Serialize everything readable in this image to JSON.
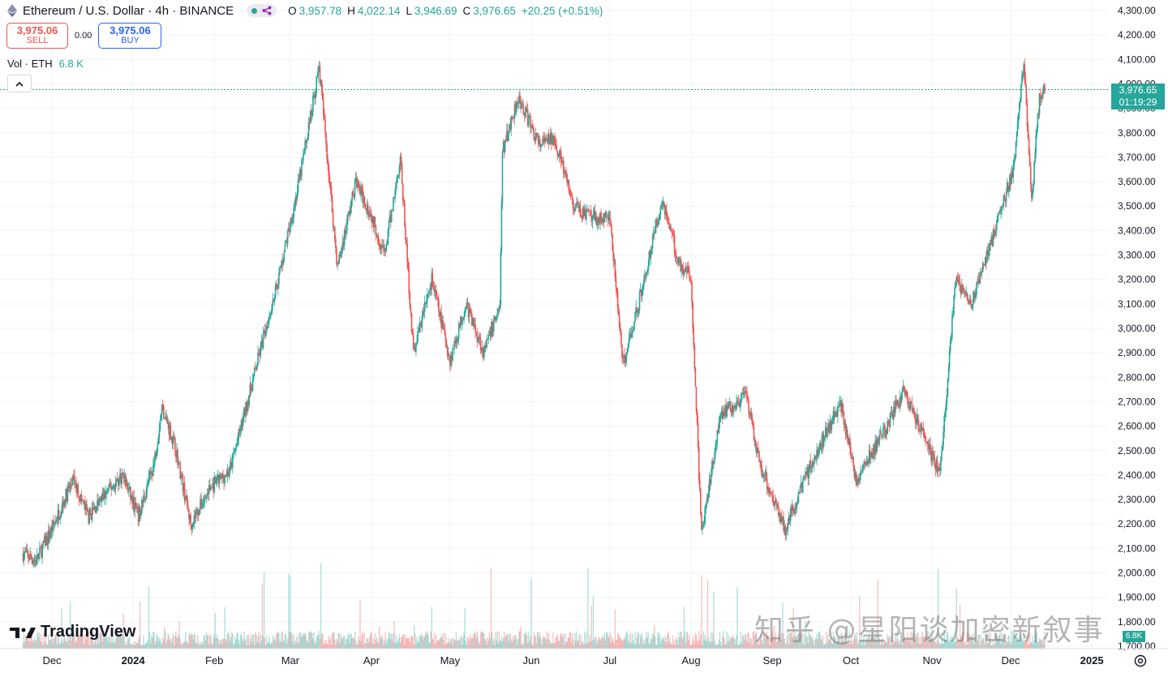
{
  "header": {
    "symbol_title": "Ethereum / U.S. Dollar · 4h · BINANCE",
    "ohlc": {
      "o_label": "O",
      "o_value": "3,957.78",
      "h_label": "H",
      "h_value": "4,022.14",
      "l_label": "L",
      "l_value": "3,946.69",
      "c_label": "C",
      "c_value": "3,976.65",
      "change": "+20.25 (+0.51%)"
    }
  },
  "trade": {
    "sell_price": "3,975.06",
    "sell_label": "SELL",
    "spread": "0.00",
    "buy_price": "3,975.06",
    "buy_label": "BUY"
  },
  "volume_legend": {
    "label": "Vol · ETH",
    "value": "6.8 K"
  },
  "last_price": {
    "price": "3,976.65",
    "countdown": "01:19:29",
    "volume": "6.8K"
  },
  "branding": {
    "logo_text": "TradingView",
    "watermark": "知乎 @星阳谈加密新叙事"
  },
  "colors": {
    "up": "#26a69a",
    "down": "#ef5350",
    "grid": "#f0f3fa",
    "text": "#131722"
  },
  "icons": [
    "ethereum-icon",
    "chevron-up-icon",
    "tradingview-logo-icon",
    "settings-icon"
  ],
  "chart_data": {
    "type": "candlestick",
    "interval": "4h",
    "y_axis": {
      "ticks": [
        "4,300.00",
        "4,200.00",
        "4,100.00",
        "4,000.00",
        "3,900.00",
        "3,800.00",
        "3,700.00",
        "3,600.00",
        "3,500.00",
        "3,400.00",
        "3,300.00",
        "3,200.00",
        "3,100.00",
        "3,000.00",
        "2,900.00",
        "2,800.00",
        "2,700.00",
        "2,600.00",
        "2,500.00",
        "2,400.00",
        "2,300.00",
        "2,200.00",
        "2,100.00",
        "2,000.00",
        "1,900.00",
        "1,800.00",
        "1,700.00"
      ],
      "ylim": [
        1700,
        4300
      ]
    },
    "x_axis": {
      "ticks": [
        "Dec",
        "2024",
        "Feb",
        "Mar",
        "Apr",
        "May",
        "Jun",
        "Jul",
        "Aug",
        "Sep",
        "Oct",
        "Nov",
        "Dec",
        "2025"
      ]
    },
    "grid": true,
    "price_path": [
      {
        "x": "2023-11-20",
        "y": 2080
      },
      {
        "x": "2023-11-25",
        "y": 2050
      },
      {
        "x": "2023-12-01",
        "y": 2180
      },
      {
        "x": "2023-12-09",
        "y": 2380
      },
      {
        "x": "2023-12-15",
        "y": 2230
      },
      {
        "x": "2023-12-22",
        "y": 2330
      },
      {
        "x": "2023-12-28",
        "y": 2400
      },
      {
        "x": "2024-01-03",
        "y": 2230
      },
      {
        "x": "2024-01-09",
        "y": 2450
      },
      {
        "x": "2024-01-12",
        "y": 2680
      },
      {
        "x": "2024-01-17",
        "y": 2520
      },
      {
        "x": "2024-01-23",
        "y": 2200
      },
      {
        "x": "2024-01-30",
        "y": 2340
      },
      {
        "x": "2024-02-07",
        "y": 2420
      },
      {
        "x": "2024-02-16",
        "y": 2800
      },
      {
        "x": "2024-02-26",
        "y": 3230
      },
      {
        "x": "2024-03-04",
        "y": 3580
      },
      {
        "x": "2024-03-12",
        "y": 4070
      },
      {
        "x": "2024-03-19",
        "y": 3250
      },
      {
        "x": "2024-03-26",
        "y": 3600
      },
      {
        "x": "2024-04-01",
        "y": 3460
      },
      {
        "x": "2024-04-06",
        "y": 3300
      },
      {
        "x": "2024-04-12",
        "y": 3700
      },
      {
        "x": "2024-04-17",
        "y": 2900
      },
      {
        "x": "2024-04-24",
        "y": 3200
      },
      {
        "x": "2024-05-01",
        "y": 2870
      },
      {
        "x": "2024-05-07",
        "y": 3100
      },
      {
        "x": "2024-05-14",
        "y": 2900
      },
      {
        "x": "2024-05-20",
        "y": 3100
      },
      {
        "x": "2024-05-21",
        "y": 3720
      },
      {
        "x": "2024-05-27",
        "y": 3950
      },
      {
        "x": "2024-06-04",
        "y": 3750
      },
      {
        "x": "2024-06-10",
        "y": 3780
      },
      {
        "x": "2024-06-17",
        "y": 3500
      },
      {
        "x": "2024-06-24",
        "y": 3450
      },
      {
        "x": "2024-07-01",
        "y": 3450
      },
      {
        "x": "2024-07-06",
        "y": 2850
      },
      {
        "x": "2024-07-13",
        "y": 3150
      },
      {
        "x": "2024-07-21",
        "y": 3530
      },
      {
        "x": "2024-07-27",
        "y": 3280
      },
      {
        "x": "2024-08-01",
        "y": 3200
      },
      {
        "x": "2024-08-05",
        "y": 2150
      },
      {
        "x": "2024-08-12",
        "y": 2650
      },
      {
        "x": "2024-08-22",
        "y": 2720
      },
      {
        "x": "2024-08-27",
        "y": 2450
      },
      {
        "x": "2024-09-06",
        "y": 2180
      },
      {
        "x": "2024-09-14",
        "y": 2400
      },
      {
        "x": "2024-09-27",
        "y": 2700
      },
      {
        "x": "2024-10-03",
        "y": 2380
      },
      {
        "x": "2024-10-15",
        "y": 2600
      },
      {
        "x": "2024-10-21",
        "y": 2750
      },
      {
        "x": "2024-11-04",
        "y": 2400
      },
      {
        "x": "2024-11-10",
        "y": 3200
      },
      {
        "x": "2024-11-16",
        "y": 3100
      },
      {
        "x": "2024-11-25",
        "y": 3400
      },
      {
        "x": "2024-12-02",
        "y": 3650
      },
      {
        "x": "2024-12-06",
        "y": 4090
      },
      {
        "x": "2024-12-09",
        "y": 3520
      },
      {
        "x": "2024-12-12",
        "y": 3950
      },
      {
        "x": "2024-12-14",
        "y": 3980
      }
    ],
    "last_price": 3976.65,
    "volume": {
      "label": "Vol · ETH",
      "last": "6.8 K"
    }
  }
}
